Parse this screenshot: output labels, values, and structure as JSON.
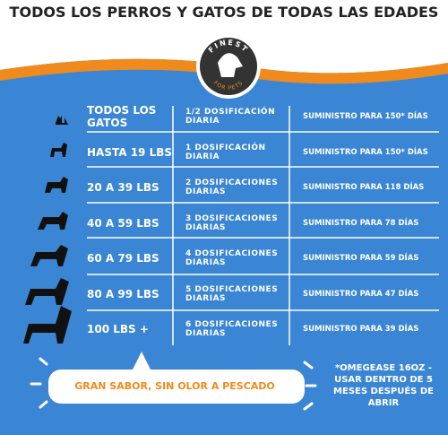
{
  "header": {
    "title": "TODOS LOS PERROS Y GATOS DE TODAS LAS EDADES"
  },
  "logo": {
    "top": "FINEST",
    "bottom": "FOR PETS"
  },
  "table": {
    "rows": [
      [
        "TODOS LOS GATOS",
        "1/2 DOSIFICACIÓN DIARIA",
        "SUMINISTRO PARA 150* DÍAS"
      ],
      [
        "HASTA 19 LBS",
        "1 DOSIFICACIÓN DIARIA",
        "SUMINISTRO PARA 150* DÍAS"
      ],
      [
        "20 A 39 LBS",
        "2 DOSIFICACIONES DIARIAS",
        "SUMINISTRO PARA 118 DÍAS"
      ],
      [
        "40 A 59 LBS",
        "3 DOSIFICACIONES DIARIAS",
        "SUMINISTRO PARA 78 DÍAS"
      ],
      [
        "60 A 79 LBS",
        "4 DOSIFICACIONES DIARIAS",
        "SUMINISTRO PARA 59 DÍAS"
      ],
      [
        "80 A 99 LBS",
        "5 DOSIFICACIONES DIARIAS",
        "SUMINISTRO PARA 47 DÍAS"
      ],
      [
        "100 LBS +",
        "6 DOSIFICACIONES DIARIAS",
        "SUMINISTRO PARA 39 DÍAS"
      ]
    ]
  },
  "bubble": {
    "text": "GRAN SABOR, SIN OLOR A PESCADO"
  },
  "note": {
    "text": "*OMEGEASE 16OZ - USAR DENTRO DE 5 MESES DESPUÉS DE ABRIR"
  }
}
